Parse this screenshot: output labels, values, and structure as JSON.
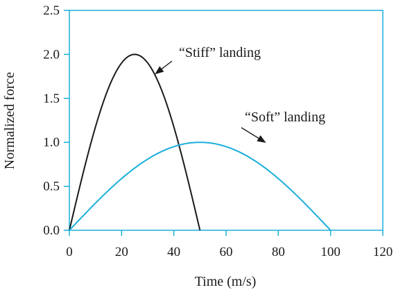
{
  "chart_data": {
    "type": "line",
    "title": "",
    "xlabel": "Time (m/s)",
    "ylabel": "Normalized force",
    "xlim": [
      0,
      120
    ],
    "ylim": [
      0,
      2.5
    ],
    "x_ticks": [
      "0",
      "20",
      "40",
      "60",
      "80",
      "100",
      "120"
    ],
    "y_ticks": [
      "0.0",
      "0.5",
      "1.0",
      "1.5",
      "2.0",
      "2.5"
    ],
    "grid": false,
    "series": [
      {
        "color": "#1a1a1a",
        "x": [
          0,
          5,
          10,
          15,
          20,
          25,
          30,
          35,
          40,
          45,
          50
        ],
        "y": [
          0,
          0.62,
          1.18,
          1.62,
          1.9,
          2.0,
          1.9,
          1.62,
          1.18,
          0.62,
          0
        ]
      },
      {
        "color": "#1aaedb",
        "x": [
          0,
          10,
          20,
          30,
          40,
          50,
          60,
          70,
          80,
          90,
          100
        ],
        "y": [
          0,
          0.31,
          0.59,
          0.81,
          0.95,
          1.0,
          0.95,
          0.81,
          0.59,
          0.31,
          0
        ]
      }
    ],
    "annotations": [
      {
        "text": "“Stiff” landing",
        "target": [
          33,
          1.78
        ]
      },
      {
        "text": "“Soft” landing",
        "target": [
          75,
          1.0
        ]
      }
    ]
  },
  "colors": {
    "frame": "#1aaedb",
    "text": "#1a1a1a"
  }
}
